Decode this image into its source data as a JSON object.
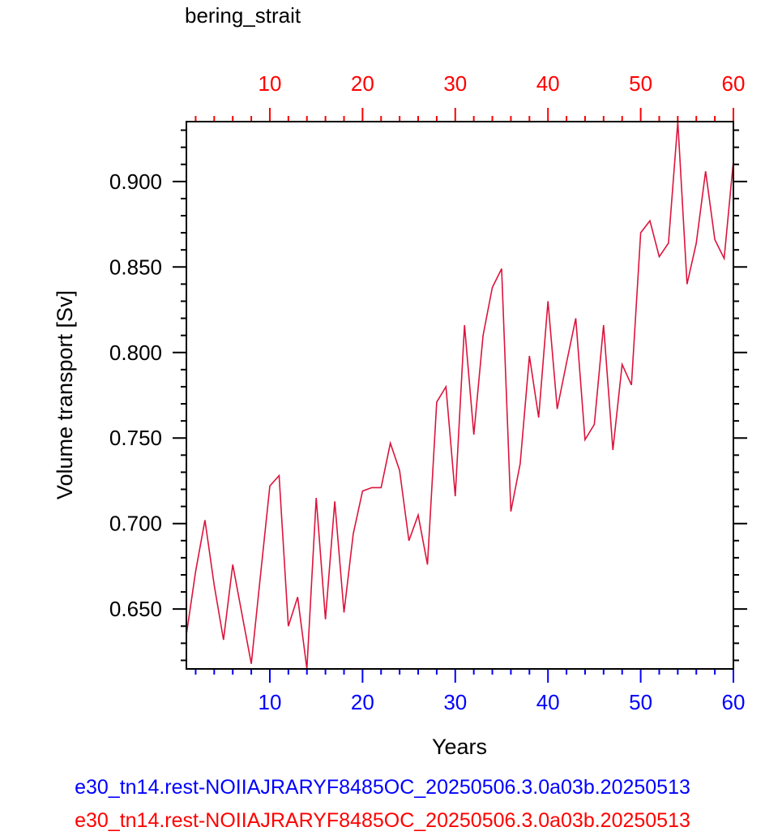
{
  "chart_data": {
    "type": "line",
    "title": "bering_strait",
    "xlabel": "Years",
    "ylabel": "Volume transport [Sv]",
    "xlim": [
      1,
      60
    ],
    "ylim": [
      0.615,
      0.935
    ],
    "x_ticks": [
      10,
      20,
      30,
      40,
      50,
      60
    ],
    "y_ticks": [
      0.65,
      0.7,
      0.75,
      0.8,
      0.85,
      0.9
    ],
    "y_tick_labels": [
      "0.650",
      "0.700",
      "0.750",
      "0.800",
      "0.850",
      "0.900"
    ],
    "bottom_axis_color": "#0000ff",
    "top_axis_color": "#ff0000",
    "series": [
      {
        "color": "#dc143c",
        "x": [
          1,
          2,
          3,
          4,
          5,
          6,
          7,
          8,
          9,
          10,
          11,
          12,
          13,
          14,
          15,
          16,
          17,
          18,
          19,
          20,
          21,
          22,
          23,
          24,
          25,
          26,
          27,
          28,
          29,
          30,
          31,
          32,
          33,
          34,
          35,
          36,
          37,
          38,
          39,
          40,
          41,
          42,
          43,
          44,
          45,
          46,
          47,
          48,
          49,
          50,
          51,
          52,
          53,
          54,
          55,
          56,
          57,
          58,
          59,
          60
        ],
        "values": [
          0.635,
          0.672,
          0.702,
          0.664,
          0.632,
          0.676,
          0.647,
          0.618,
          0.67,
          0.722,
          0.728,
          0.64,
          0.657,
          0.615,
          0.715,
          0.644,
          0.713,
          0.648,
          0.694,
          0.719,
          0.721,
          0.721,
          0.747,
          0.731,
          0.69,
          0.705,
          0.676,
          0.771,
          0.78,
          0.716,
          0.816,
          0.752,
          0.81,
          0.838,
          0.849,
          0.707,
          0.735,
          0.798,
          0.762,
          0.83,
          0.767,
          0.794,
          0.82,
          0.749,
          0.758,
          0.816,
          0.743,
          0.793,
          0.781,
          0.87,
          0.877,
          0.856,
          0.864,
          0.935,
          0.84,
          0.864,
          0.906,
          0.866,
          0.855,
          0.912
        ]
      }
    ]
  },
  "legend": {
    "blue_label": "e30_tn14.rest-NOIIAJRARYF8485OC_20250506.3.0a03b.20250513",
    "red_label": "e30_tn14.rest-NOIIAJRARYF8485OC_20250506.3.0a03b.20250513",
    "blue_color": "#0000ff",
    "red_color": "#ff0000"
  }
}
